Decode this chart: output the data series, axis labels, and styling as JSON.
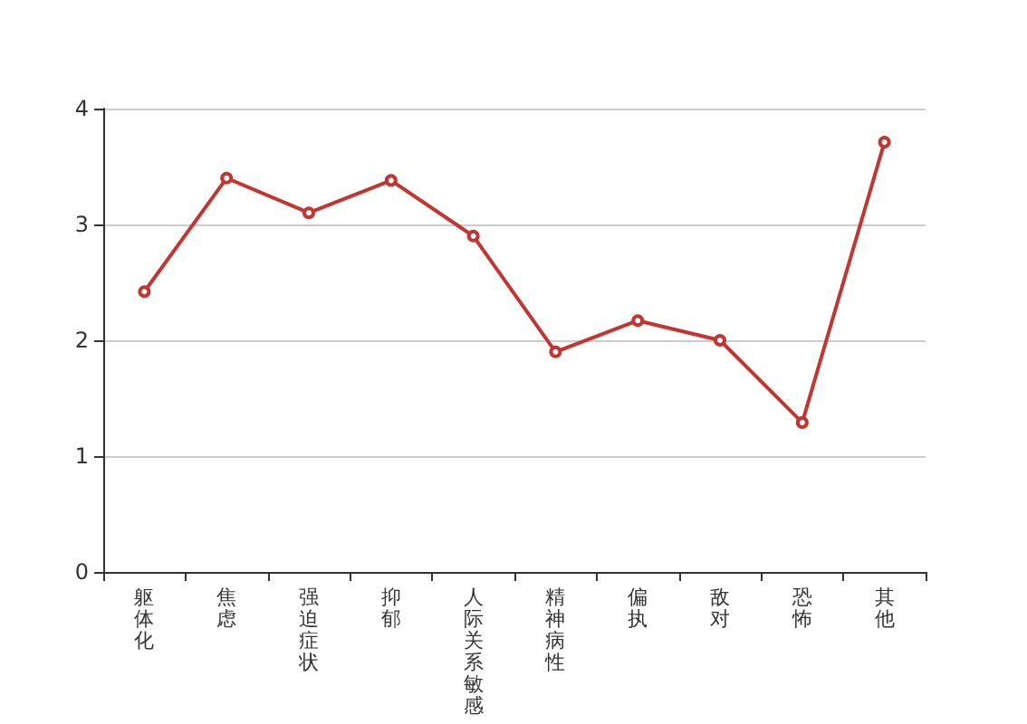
{
  "chart_data": {
    "type": "line",
    "categories": [
      "躯体化",
      "焦虑",
      "强迫症状",
      "抑郁",
      "人际关系敏感",
      "精神病性",
      "偏执",
      "敌对",
      "恐怖",
      "其他"
    ],
    "values": [
      2.42,
      3.4,
      3.1,
      3.38,
      2.9,
      1.9,
      2.17,
      2.0,
      1.29,
      3.71
    ],
    "color": "#c23531",
    "ylim": [
      0,
      4
    ],
    "yticks": [
      0,
      1,
      2,
      3,
      4
    ],
    "grid": "y",
    "marker": "circle",
    "line_style": "solid"
  }
}
